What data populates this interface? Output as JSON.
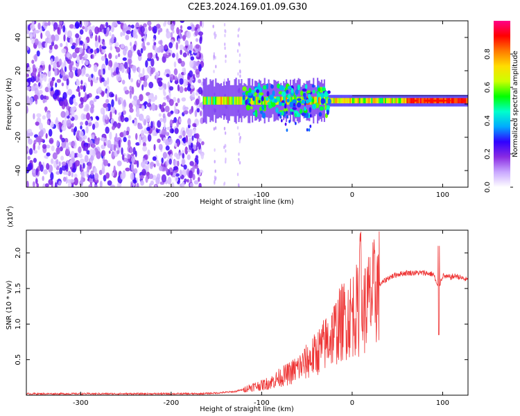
{
  "title": "C2E3.2024.169.01.09.G30",
  "chart_data": [
    {
      "type": "heatmap",
      "xlabel": "Height of straight line (km)",
      "ylabel": "Frequency (Hz)",
      "xlim": [
        -360,
        128
      ],
      "ylim": [
        -50,
        50
      ],
      "x_ticks": [
        -300,
        -200,
        -100,
        0,
        100
      ],
      "x_tick_labels": [
        "-300",
        "-200",
        "-100",
        "0",
        "100"
      ],
      "y_ticks": [
        -40,
        -20,
        0,
        20,
        40
      ],
      "y_tick_labels": [
        "-40",
        "-20",
        "0",
        "20",
        "40"
      ],
      "colorbar": {
        "label": "Normalized spectral amplitude",
        "range": [
          0.0,
          1.0
        ],
        "ticks": [
          0.0,
          0.2,
          0.4,
          0.6,
          0.8
        ],
        "tick_labels": [
          "0.0",
          "0.2",
          "0.4",
          "0.6",
          "0.8"
        ],
        "colors": [
          "#ffffff",
          "#c9a8ff",
          "#8a2be2",
          "#3000ff",
          "#00aaff",
          "#00ffcc",
          "#00ff00",
          "#ccff00",
          "#ffdd00",
          "#ff7a00",
          "#ff0000",
          "#ff0088"
        ]
      },
      "features": {
        "noise_region_x": [
          -360,
          -165
        ],
        "band_center_freq": 2,
        "band_start_x": -165,
        "strong_signal_x": [
          60,
          128
        ]
      },
      "grid": false
    },
    {
      "type": "line",
      "xlabel": "Height of straight line (km)",
      "ylabel": "SNR (10 * v/v)",
      "y_scale_label": "(x10",
      "y_scale_exponent": "4",
      "xlim": [
        -360,
        128
      ],
      "ylim": [
        0,
        2.32
      ],
      "x_ticks": [
        -300,
        -200,
        -100,
        0,
        100
      ],
      "x_tick_labels": [
        "-300",
        "-200",
        "-100",
        "0",
        "100"
      ],
      "y_ticks": [
        0.5,
        1.0,
        1.5,
        2.0
      ],
      "y_tick_labels": [
        "0.5",
        "1.0",
        "1.5",
        "2.0"
      ],
      "series": [
        {
          "color": "#ee3333",
          "x": [
            -360,
            -300,
            -250,
            -200,
            -170,
            -150,
            -130,
            -120,
            -110,
            -100,
            -90,
            -80,
            -70,
            -60,
            -50,
            -40,
            -30,
            -20,
            -10,
            0,
            5,
            10,
            15,
            20,
            25,
            30,
            40,
            50,
            60,
            70,
            80,
            90,
            95,
            100,
            105,
            110,
            115,
            120,
            128
          ],
          "y": [
            0.02,
            0.02,
            0.02,
            0.02,
            0.02,
            0.03,
            0.05,
            0.08,
            0.12,
            0.14,
            0.18,
            0.25,
            0.3,
            0.38,
            0.47,
            0.58,
            0.72,
            0.88,
            1.05,
            1.15,
            1.2,
            1.12,
            1.25,
            1.35,
            1.45,
            1.55,
            1.65,
            1.7,
            1.72,
            1.72,
            1.72,
            1.7,
            1.5,
            1.68,
            1.66,
            1.66,
            1.68,
            1.65,
            1.62
          ]
        }
      ],
      "grid": false
    }
  ]
}
